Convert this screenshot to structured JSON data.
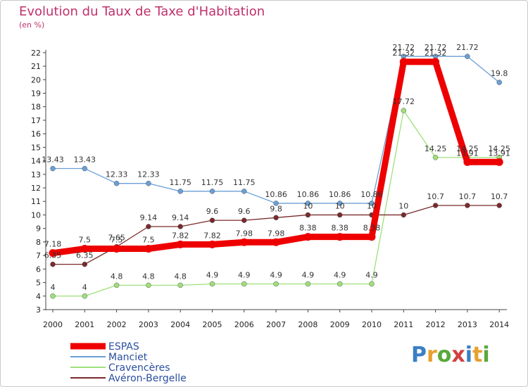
{
  "title": "Evolution du Taux de Taxe d'Habitation",
  "unit": "(en %)",
  "logo": "Proxiti",
  "chart_data": {
    "type": "line",
    "title": "Evolution du Taux de Taxe d'Habitation",
    "ylabel": "(en %)",
    "xlabel": "",
    "categories": [
      "2000",
      "2001",
      "2002",
      "2003",
      "2004",
      "2005",
      "2006",
      "2007",
      "2008",
      "2009",
      "2010",
      "2011",
      "2012",
      "2013",
      "2014"
    ],
    "ylim": [
      3,
      22
    ],
    "yticks": [
      3,
      4,
      5,
      6,
      7,
      8,
      9,
      10,
      11,
      12,
      13,
      14,
      15,
      16,
      17,
      18,
      19,
      20,
      21,
      22
    ],
    "grid": false,
    "legend_position": "bottom-left",
    "series": [
      {
        "name": "ESPAS",
        "color": "#ee0000",
        "values": [
          7.18,
          7.5,
          7.5,
          7.5,
          7.82,
          7.82,
          7.98,
          7.98,
          8.38,
          8.38,
          8.38,
          21.32,
          21.32,
          13.91,
          13.91
        ],
        "labels": [
          "7.18",
          "7.5",
          "7.5",
          "7.5",
          "7.82",
          "7.82",
          "7.98",
          "7.98",
          "8.38",
          "8.38",
          "8.38",
          "21.32",
          "21.32",
          "13.91",
          "13.91"
        ]
      },
      {
        "name": "Manciet",
        "color": "#6a9fd4",
        "values": [
          13.43,
          13.43,
          12.33,
          12.33,
          11.75,
          11.75,
          11.75,
          10.86,
          10.86,
          10.86,
          10.86,
          21.72,
          21.72,
          21.72,
          19.8
        ],
        "labels": [
          "13.43",
          "13.43",
          "12.33",
          "12.33",
          "11.75",
          "11.75",
          "11.75",
          "10.86",
          "10.86",
          "10.86",
          "10.86",
          "21.72",
          "21.72",
          "21.72",
          "19.8"
        ]
      },
      {
        "name": "Cravencères",
        "color": "#9ee07a",
        "values": [
          4,
          4,
          4.8,
          4.8,
          4.8,
          4.9,
          4.9,
          4.9,
          4.9,
          4.9,
          4.9,
          17.72,
          14.25,
          14.25,
          14.25
        ],
        "labels": [
          "4",
          "4",
          "4.8",
          "4.8",
          "4.8",
          "4.9",
          "4.9",
          "4.9",
          "4.9",
          "4.9",
          "4.9",
          "17.72",
          "14.25",
          "14.25",
          "14.25"
        ]
      },
      {
        "name": "Avéron-Bergelle",
        "color": "#7a2a2a",
        "values": [
          6.35,
          6.35,
          7.65,
          9.14,
          9.14,
          9.6,
          9.6,
          9.8,
          10,
          10,
          10,
          10,
          10.7,
          10.7,
          10.7
        ],
        "labels": [
          "6.35",
          "6.35",
          "7.65",
          "9.14",
          "9.14",
          "9.6",
          "9.6",
          "9.8",
          "10",
          "10",
          "10",
          "10",
          "10.7",
          "10.7",
          "10.7"
        ]
      }
    ]
  }
}
